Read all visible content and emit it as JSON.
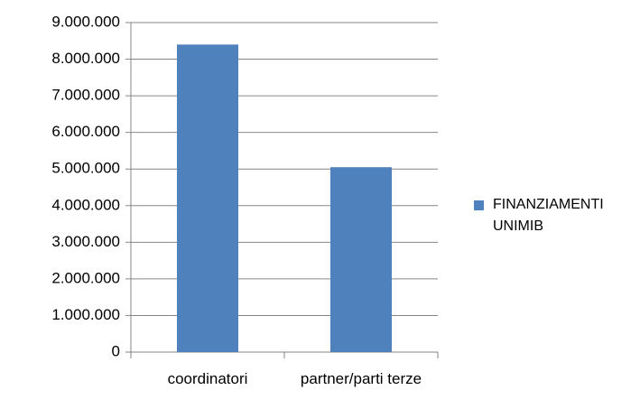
{
  "chart_data": {
    "type": "bar",
    "categories": [
      "coordinatori",
      "partner/parti terze"
    ],
    "series": [
      {
        "name": "FINANZIAMENTI UNIMIB",
        "color": "#4f81bd",
        "values": [
          8400000,
          5050000
        ]
      }
    ],
    "ylim": [
      0,
      9000000
    ],
    "yticks": [
      0,
      {
        "value": 1000000,
        "label": "1.000.000"
      },
      {
        "value": 2000000,
        "label": "2.000.000"
      },
      {
        "value": 3000000,
        "label": "3.000.000"
      },
      {
        "value": 4000000,
        "label": "4.000.000"
      },
      {
        "value": 5000000,
        "label": "5.000.000"
      },
      {
        "value": 6000000,
        "label": "6.000.000"
      },
      {
        "value": 7000000,
        "label": "7.000.000"
      },
      {
        "value": 8000000,
        "label": "8.000.000"
      },
      {
        "value": 9000000,
        "label": "9.000.000"
      }
    ],
    "grid": true,
    "legend": "right"
  }
}
